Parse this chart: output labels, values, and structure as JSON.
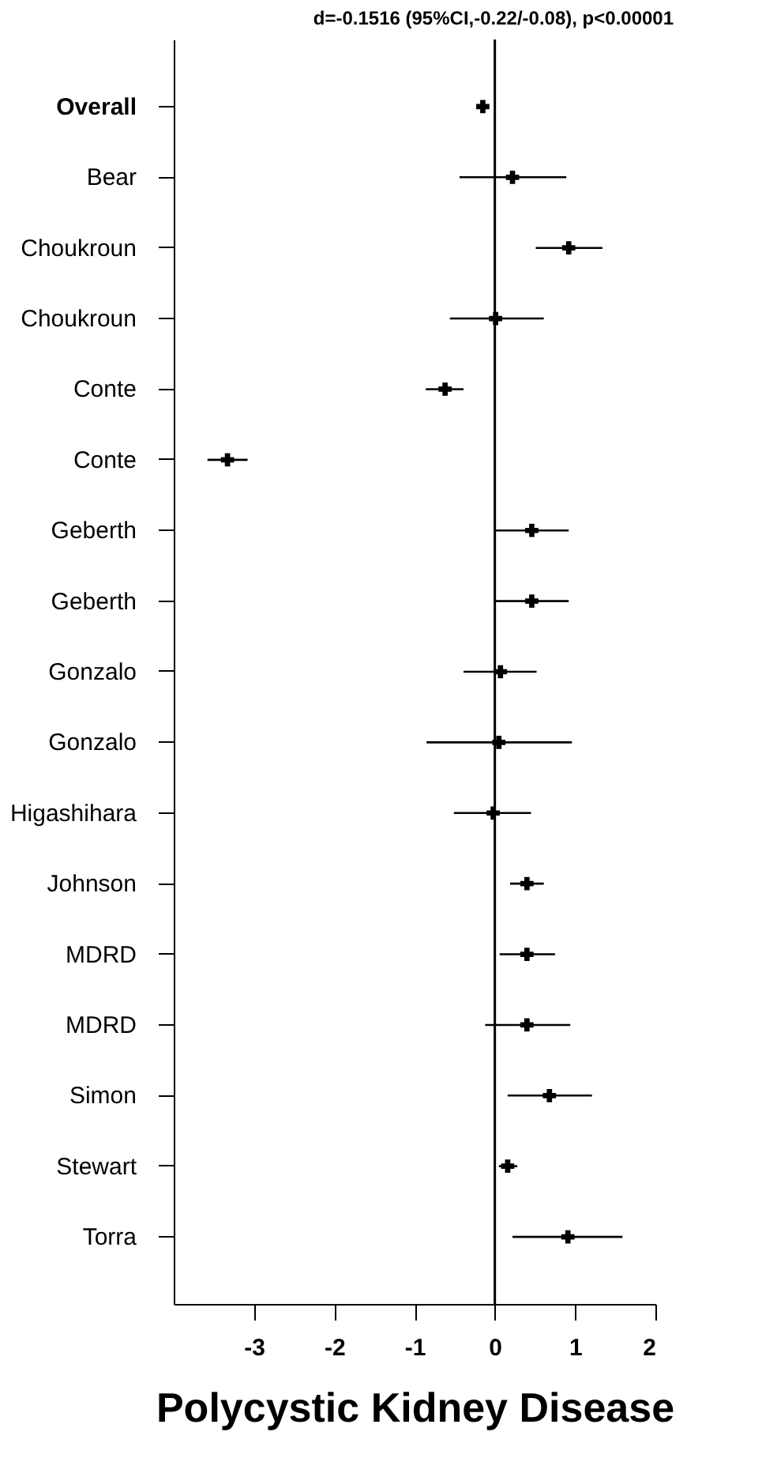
{
  "chart_data": {
    "type": "scatter",
    "orientation": "horizontal",
    "marker": "cross",
    "grid": false,
    "xlabel": "Polycystic Kidney Disease",
    "annotations": [
      "d=-0.1516 (95%CI,-0.22/-0.08), p<0.00001"
    ],
    "categories": [
      "Overall",
      "Bear",
      "Choukroun",
      "Choukroun",
      "Conte",
      "Conte",
      "Geberth",
      "Geberth",
      "Gonzalo",
      "Gonzalo",
      "Higashihara",
      "Johnson",
      "MDRD",
      "MDRD",
      "Simon",
      "Stewart",
      "Torra"
    ],
    "series": [
      {
        "color": "#000000",
        "values": [
          -0.15,
          0.22,
          0.92,
          0.01,
          -0.62,
          -3.33,
          0.46,
          0.46,
          0.07,
          0.05,
          -0.02,
          0.4,
          0.4,
          0.4,
          0.68,
          0.16,
          0.91
        ],
        "errors": [
          [
            -0.22,
            -0.08
          ],
          [
            -0.44,
            0.89
          ],
          [
            0.51,
            1.34
          ],
          [
            -0.56,
            0.61
          ],
          [
            -0.86,
            -0.39
          ],
          [
            -3.58,
            -3.08
          ],
          [
            0,
            0.92
          ],
          [
            0,
            0.92
          ],
          [
            -0.39,
            0.52
          ],
          [
            -0.85,
            0.96
          ],
          [
            -0.51,
            0.45
          ],
          [
            0.19,
            0.61
          ],
          [
            0.06,
            0.75
          ],
          [
            -0.12,
            0.94
          ],
          [
            0.16,
            1.21
          ],
          [
            0.05,
            0.28
          ],
          [
            0.22,
            1.59
          ]
        ]
      }
    ],
    "xlim": [
      -4,
      2
    ],
    "xticks": [
      -3,
      -2,
      -1,
      0,
      1,
      2
    ],
    "ref_lines": [
      {
        "axis": "x",
        "value": 0,
        "color": "#000000"
      }
    ]
  }
}
